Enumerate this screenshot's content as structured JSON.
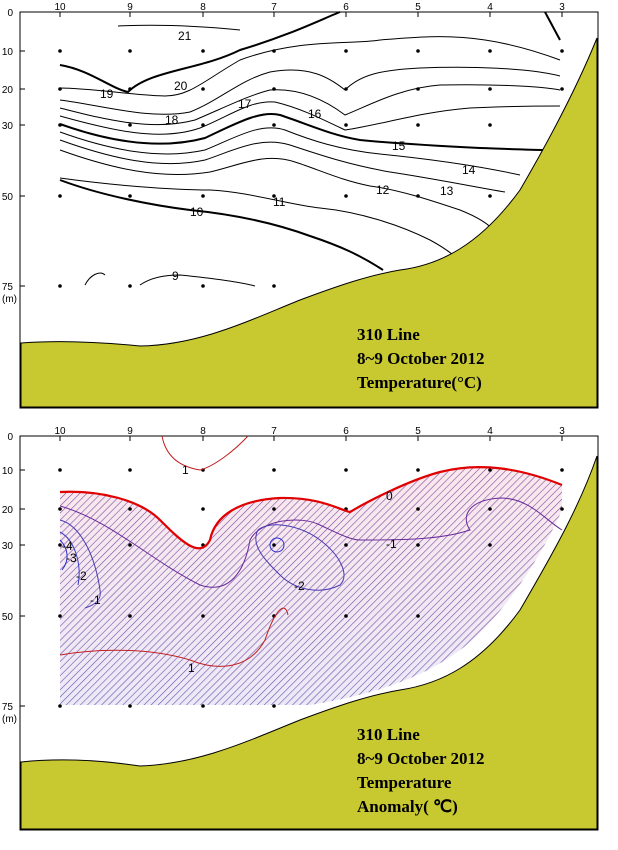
{
  "chart_data": [
    {
      "type": "contour",
      "title_lines": [
        "310 Line",
        "8~9 October 2012",
        "Temperature(°C)"
      ],
      "x_stations": [
        "10",
        "9",
        "8",
        "7",
        "6",
        "5",
        "4",
        "3"
      ],
      "y_depth_ticks": [
        "0",
        "10",
        "20",
        "30",
        "50",
        "75"
      ],
      "y_unit": "(m)",
      "contour_labels": [
        "21",
        "20",
        "19",
        "18",
        "17",
        "16",
        "15",
        "14",
        "13",
        "12",
        "11",
        "10",
        "9"
      ],
      "colors": {
        "seabed": "#c8c830",
        "contour": "#000000"
      }
    },
    {
      "type": "contour",
      "title_lines": [
        "310 Line",
        "8~9 October 2012",
        "Temperature",
        "Anomaly( ℃)"
      ],
      "x_stations": [
        "10",
        "9",
        "8",
        "7",
        "6",
        "5",
        "4",
        "3"
      ],
      "y_depth_ticks": [
        "0",
        "10",
        "20",
        "30",
        "50",
        "75"
      ],
      "y_unit": "(m)",
      "contour_labels": [
        "1",
        "0",
        "-1",
        "-2",
        "-1",
        "-2",
        "-3",
        "-4",
        "1"
      ],
      "colors": {
        "seabed": "#c8c830",
        "zero_line": "#e00000",
        "negative_lines": "#5a1a9a",
        "positive_lines": "#c02020",
        "hatch_red": "#d04060",
        "hatch_blue": "#5050c0"
      }
    }
  ]
}
